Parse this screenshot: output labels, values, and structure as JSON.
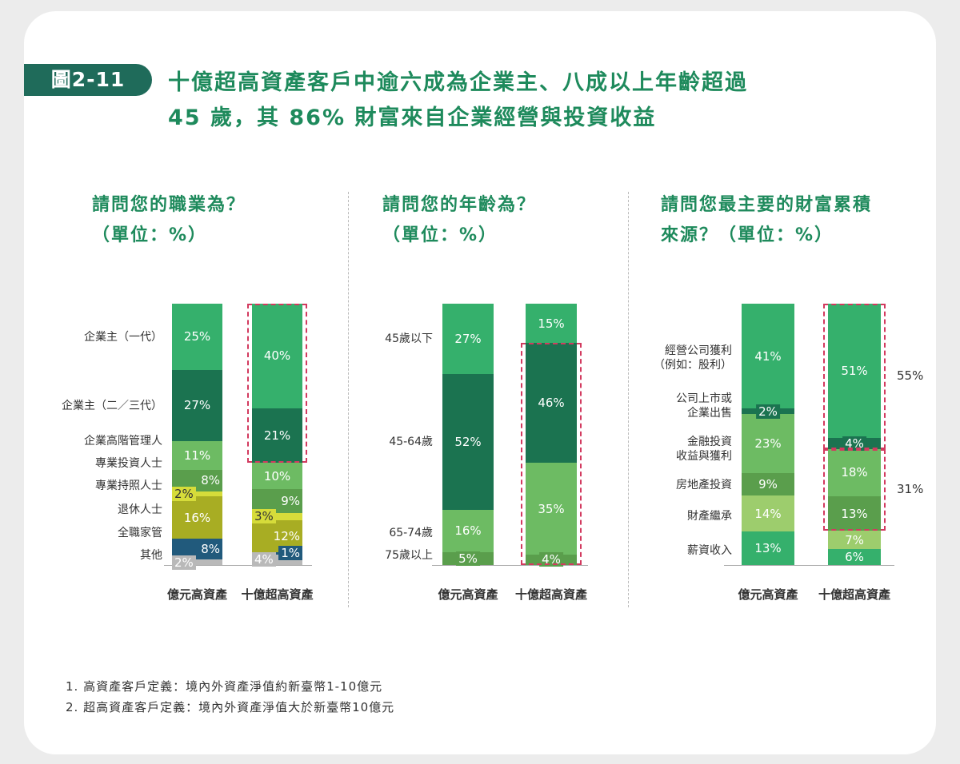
{
  "figure": {
    "badge": "圖2-11",
    "title_line1": "十億超高資產客戶中逾六成為企業主、八成以上年齡超過",
    "title_line2": "45 歲，其 86% 財富來自企業經營與投資收益"
  },
  "chart_data": [
    {
      "type": "bar",
      "stacked": true,
      "title_line1": "請問您的職業為？",
      "title_line2": "（單位：%）",
      "categories": [
        "億元高資產",
        "十億超高資產"
      ],
      "series": [
        {
          "name": "企業主（一代）",
          "values": [
            25,
            40
          ],
          "color": "#35b06c"
        },
        {
          "name": "企業主（二／三代）",
          "values": [
            27,
            21
          ],
          "color": "#1b7350"
        },
        {
          "name": "企業高階管理人",
          "values": [
            11,
            10
          ],
          "color": "#6dbb63"
        },
        {
          "name": "專業投資人士",
          "values": [
            8,
            9
          ],
          "color": "#5a9e4c"
        },
        {
          "name": "專業持照人士",
          "values": [
            2,
            3
          ],
          "color": "#d6dc3a"
        },
        {
          "name": "退休人士",
          "values": [
            16,
            12
          ],
          "color": "#a8ad23"
        },
        {
          "name": "全職家管",
          "values": [
            8,
            1
          ],
          "color": "#215a7c"
        },
        {
          "name": "其他",
          "values": [
            2,
            4
          ],
          "color": "#b9b9b9"
        }
      ],
      "highlight": [
        {
          "bar": 1,
          "series": [
            0,
            1
          ]
        }
      ]
    },
    {
      "type": "bar",
      "stacked": true,
      "title_line1": "請問您的年齡為？",
      "title_line2": "（單位：%）",
      "categories": [
        "億元高資產",
        "十億超高資產"
      ],
      "series": [
        {
          "name": "45歲以下",
          "values": [
            27,
            15
          ],
          "color": "#35b06c"
        },
        {
          "name": "45-64歲",
          "values": [
            52,
            46
          ],
          "color": "#1b7350"
        },
        {
          "name": "65-74歲",
          "values": [
            16,
            35
          ],
          "color": "#6dbb63"
        },
        {
          "name": "75歲以上",
          "values": [
            5,
            4
          ],
          "color": "#5a9e4c"
        }
      ],
      "highlight": [
        {
          "bar": 1,
          "series": [
            1,
            2,
            3
          ]
        }
      ]
    },
    {
      "type": "bar",
      "stacked": true,
      "title_line1": "請問您最主要的財富累積",
      "title_line2": "來源？（單位：%）",
      "categories": [
        "億元高資產",
        "十億超高資產"
      ],
      "series": [
        {
          "name": "經營公司獲利\n（例如：股利）",
          "values": [
            41,
            51
          ],
          "color": "#35b06c"
        },
        {
          "name": "公司上市或\n企業出售",
          "values": [
            2,
            4
          ],
          "color": "#1b7350"
        },
        {
          "name": "金融投資\n收益與獲利",
          "values": [
            23,
            18
          ],
          "color": "#6dbb63"
        },
        {
          "name": "房地產投資",
          "values": [
            9,
            13
          ],
          "color": "#5a9e4c"
        },
        {
          "name": "財產繼承",
          "values": [
            14,
            7
          ],
          "color": "#9dcd6d"
        },
        {
          "name": "薪資收入",
          "values": [
            13,
            6
          ],
          "color": "#35b06c"
        }
      ],
      "highlight": [
        {
          "bar": 1,
          "series": [
            0,
            1
          ],
          "label": "55%"
        },
        {
          "bar": 1,
          "series": [
            2,
            3
          ],
          "label": "31%"
        }
      ]
    }
  ],
  "notes": [
    "1. 高資產客戶定義：境內外資產淨值約新臺幣1-10億元",
    "2. 超高資產客戶定義：境內外資產淨值大於新臺幣10億元"
  ]
}
